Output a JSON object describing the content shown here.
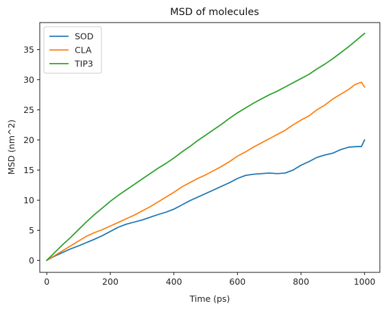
{
  "chart_data": {
    "type": "line",
    "title": "MSD of molecules",
    "xlabel": "Time (ps)",
    "ylabel": "MSD (nm^2)",
    "xlim": [
      -22,
      1048
    ],
    "ylim": [
      -2,
      39.5
    ],
    "xticks": [
      0,
      200,
      400,
      600,
      800,
      1000
    ],
    "yticks": [
      0,
      5,
      10,
      15,
      20,
      25,
      30,
      35
    ],
    "grid": false,
    "legend": "top-left",
    "series": [
      {
        "name": "SOD",
        "color": "#1f77b4",
        "x": [
          0,
          25,
          50,
          75,
          100,
          125,
          150,
          175,
          200,
          225,
          250,
          275,
          300,
          325,
          350,
          375,
          400,
          425,
          450,
          475,
          500,
          525,
          550,
          575,
          600,
          625,
          650,
          675,
          700,
          725,
          750,
          775,
          800,
          825,
          850,
          875,
          900,
          925,
          950,
          975,
          990,
          1000
        ],
        "y": [
          0,
          0.7,
          1.3,
          1.9,
          2.4,
          2.95,
          3.5,
          4.1,
          4.8,
          5.5,
          6.0,
          6.35,
          6.7,
          7.15,
          7.6,
          8.0,
          8.5,
          9.2,
          9.9,
          10.5,
          11.1,
          11.7,
          12.3,
          12.9,
          13.6,
          14.1,
          14.3,
          14.4,
          14.5,
          14.4,
          14.5,
          15.0,
          15.8,
          16.4,
          17.1,
          17.5,
          17.8,
          18.4,
          18.8,
          18.9,
          18.9,
          20.0
        ]
      },
      {
        "name": "CLA",
        "color": "#ff7f0e",
        "x": [
          0,
          25,
          50,
          75,
          100,
          125,
          150,
          175,
          200,
          225,
          250,
          275,
          300,
          325,
          350,
          375,
          400,
          425,
          450,
          475,
          500,
          525,
          550,
          575,
          600,
          625,
          650,
          675,
          700,
          725,
          750,
          775,
          800,
          825,
          850,
          875,
          900,
          925,
          950,
          970,
          990,
          1000
        ],
        "y": [
          0,
          0.8,
          1.6,
          2.4,
          3.2,
          4.0,
          4.6,
          5.1,
          5.7,
          6.3,
          6.9,
          7.5,
          8.2,
          8.9,
          9.7,
          10.5,
          11.3,
          12.2,
          12.9,
          13.6,
          14.2,
          14.9,
          15.6,
          16.4,
          17.3,
          18.0,
          18.8,
          19.5,
          20.2,
          20.9,
          21.6,
          22.5,
          23.3,
          24.0,
          25.0,
          25.8,
          26.8,
          27.6,
          28.4,
          29.2,
          29.6,
          28.8
        ]
      },
      {
        "name": "TIP3",
        "color": "#2ca02c",
        "x": [
          0,
          25,
          50,
          75,
          100,
          125,
          150,
          175,
          200,
          225,
          250,
          275,
          300,
          325,
          350,
          375,
          400,
          425,
          450,
          475,
          500,
          525,
          550,
          575,
          600,
          625,
          650,
          675,
          700,
          725,
          750,
          775,
          800,
          825,
          850,
          875,
          900,
          925,
          950,
          975,
          1000
        ],
        "y": [
          0,
          1.3,
          2.6,
          3.8,
          5.1,
          6.4,
          7.6,
          8.7,
          9.8,
          10.8,
          11.7,
          12.6,
          13.5,
          14.4,
          15.3,
          16.1,
          17.0,
          18.0,
          18.9,
          19.9,
          20.8,
          21.7,
          22.6,
          23.6,
          24.5,
          25.3,
          26.1,
          26.8,
          27.5,
          28.1,
          28.8,
          29.5,
          30.2,
          30.9,
          31.8,
          32.6,
          33.5,
          34.5,
          35.5,
          36.6,
          37.7
        ]
      }
    ]
  }
}
